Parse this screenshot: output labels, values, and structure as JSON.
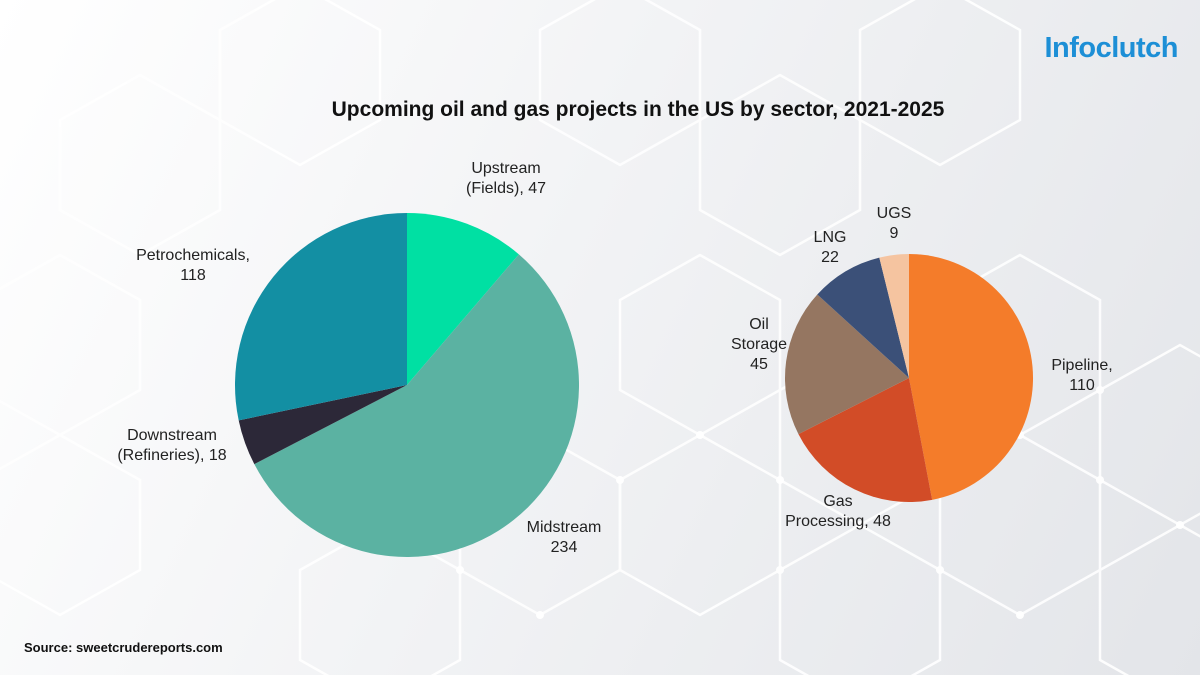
{
  "header": {
    "title": "Upcoming oil and gas projects in the US by sector, 2021-2025",
    "logo_text": "Infoclutch"
  },
  "footer": {
    "source": "Source: sweetcrudereports.com"
  },
  "chart_data": [
    {
      "type": "pie",
      "title": "",
      "slices": [
        {
          "label": [
            "Upstream",
            "(Fields), 47"
          ],
          "value": 47,
          "color": "#00e0a3"
        },
        {
          "label": [
            "Midstream",
            "234"
          ],
          "value": 234,
          "color": "#5bb2a2"
        },
        {
          "label": [
            "Downstream",
            "(Refineries), 18"
          ],
          "value": 18,
          "color": "#2c2838"
        },
        {
          "label": [
            "Petrochemicals,",
            "118"
          ],
          "value": 118,
          "color": "#138fa3"
        }
      ]
    },
    {
      "type": "pie",
      "title": "",
      "slices": [
        {
          "label": [
            "Pipeline,",
            "110"
          ],
          "value": 110,
          "color": "#f47c2a"
        },
        {
          "label": [
            "Gas",
            "Processing, 48"
          ],
          "value": 48,
          "color": "#d24c27"
        },
        {
          "label": [
            "Oil",
            "Storage",
            "45"
          ],
          "value": 45,
          "color": "#957661"
        },
        {
          "label": [
            "LNG",
            "22"
          ],
          "value": 22,
          "color": "#3b5078"
        },
        {
          "label": [
            "UGS",
            "9"
          ],
          "value": 9,
          "color": "#f5c4a0"
        }
      ]
    }
  ]
}
